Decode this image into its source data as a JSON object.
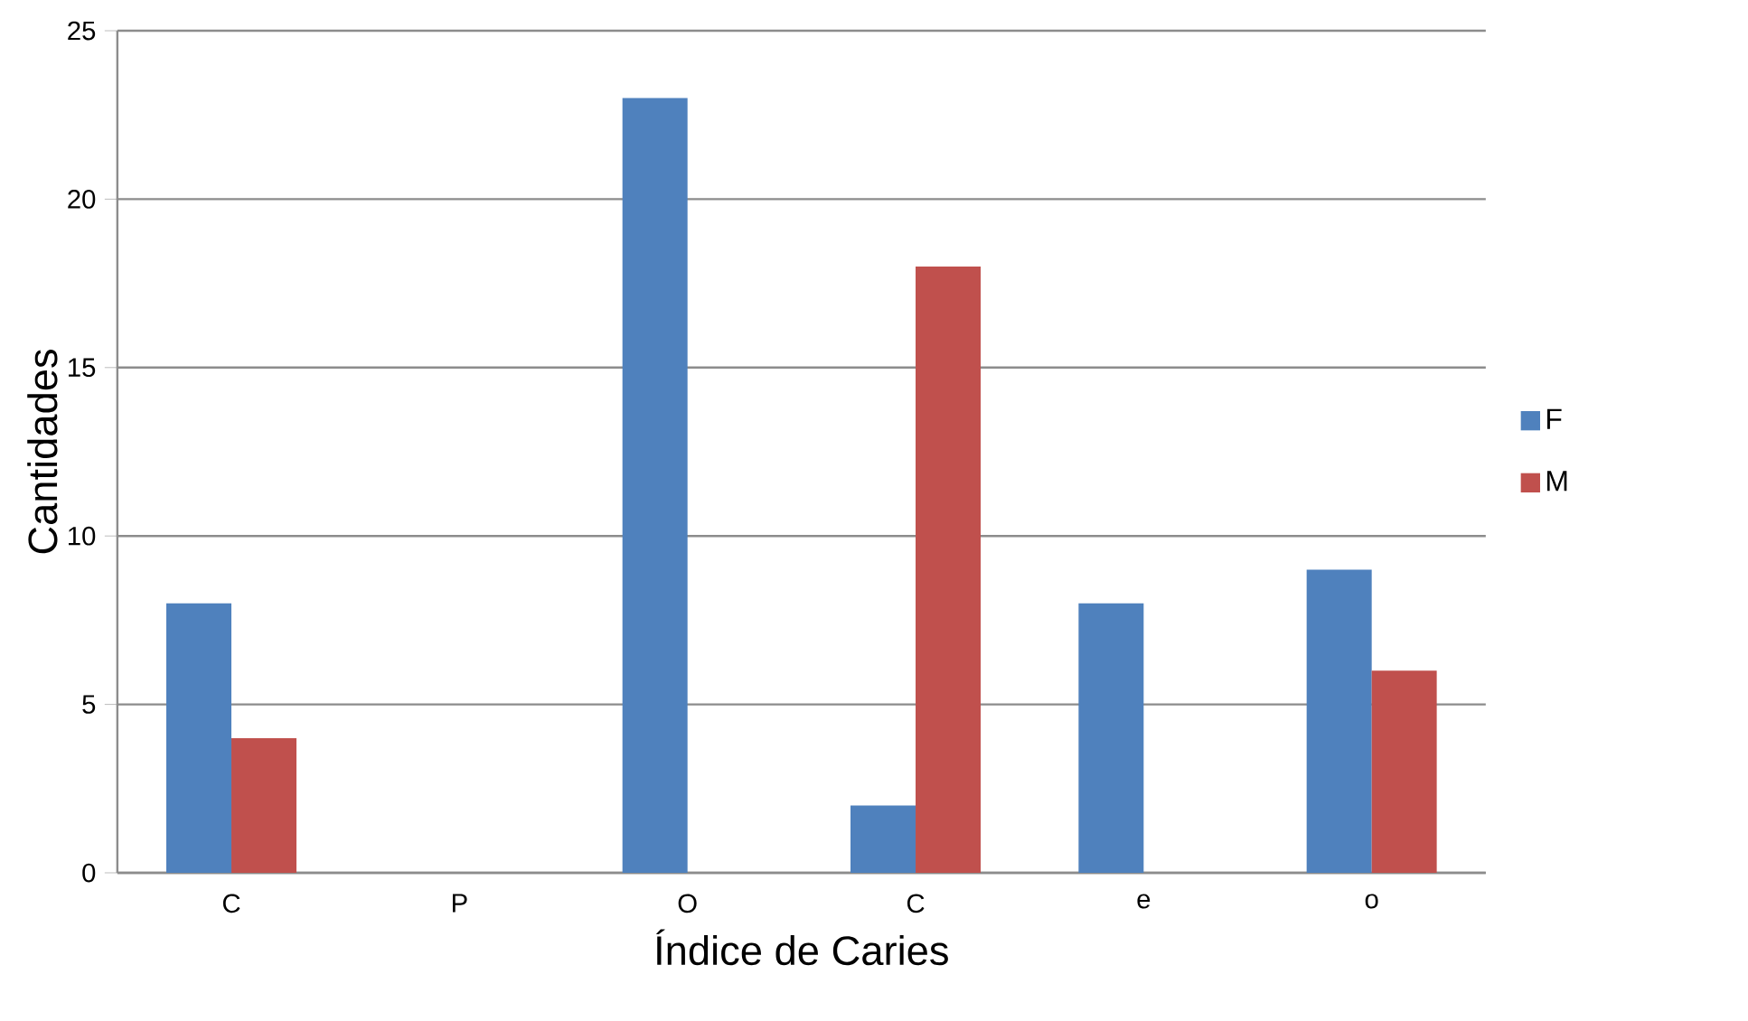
{
  "chart_data": {
    "type": "bar",
    "xlabel": "Índice de Caries",
    "ylabel": "Cantidades",
    "categories": [
      "C",
      "P",
      "O",
      "C",
      "e",
      "o"
    ],
    "series": [
      {
        "name": "F",
        "color": "#4f81bd",
        "values": [
          8,
          0,
          23,
          2,
          8,
          9
        ]
      },
      {
        "name": "M",
        "color": "#c0504d",
        "values": [
          4,
          0,
          0,
          18,
          0,
          6
        ]
      }
    ],
    "ylim": [
      0,
      25
    ],
    "yticks": [
      0,
      5,
      10,
      15,
      20,
      25
    ],
    "grid": "y",
    "legend": "right"
  }
}
